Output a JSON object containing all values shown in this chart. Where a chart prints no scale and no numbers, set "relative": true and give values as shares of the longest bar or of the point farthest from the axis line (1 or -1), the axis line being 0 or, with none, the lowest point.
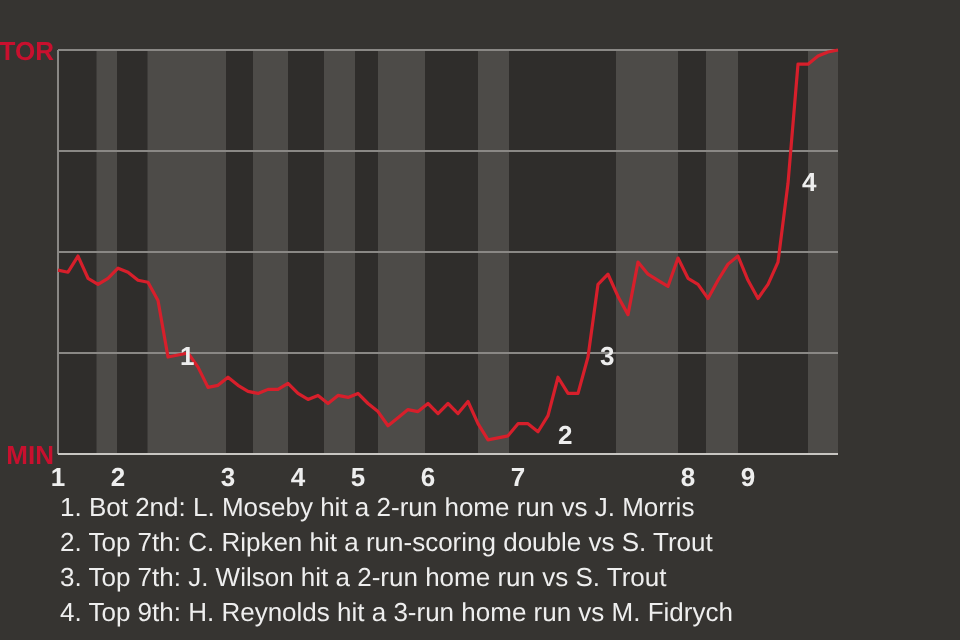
{
  "chart_data": {
    "type": "line",
    "relative": true,
    "categories": [
      "1",
      null,
      null,
      null,
      null,
      null,
      "2",
      null,
      null,
      null,
      null,
      null,
      null,
      null,
      null,
      null,
      null,
      "3",
      null,
      null,
      null,
      null,
      null,
      null,
      "4",
      null,
      null,
      null,
      null,
      null,
      "5",
      null,
      null,
      null,
      null,
      null,
      null,
      "6",
      null,
      null,
      null,
      null,
      null,
      null,
      null,
      null,
      "7",
      null,
      null,
      null,
      null,
      null,
      null,
      null,
      null,
      null,
      null,
      null,
      null,
      null,
      null,
      null,
      null,
      "8",
      null,
      null,
      null,
      null,
      null,
      "9",
      null,
      null,
      null,
      null,
      null,
      null,
      null,
      null,
      null
    ],
    "series": [
      {
        "color": "#d71f2b",
        "values": [
          0.455,
          0.45,
          0.49,
          0.435,
          0.42,
          0.435,
          0.46,
          0.45,
          0.43,
          0.425,
          0.38,
          0.24,
          0.245,
          0.25,
          0.215,
          0.165,
          0.17,
          0.19,
          0.17,
          0.155,
          0.15,
          0.16,
          0.16,
          0.175,
          0.15,
          0.135,
          0.145,
          0.125,
          0.145,
          0.14,
          0.15,
          0.125,
          0.105,
          0.07,
          0.09,
          0.11,
          0.105,
          0.125,
          0.1,
          0.125,
          0.1,
          0.13,
          0.075,
          0.035,
          0.04,
          0.045,
          0.075,
          0.075,
          0.055,
          0.095,
          0.19,
          0.15,
          0.15,
          0.24,
          0.42,
          0.445,
          0.39,
          0.345,
          0.475,
          0.445,
          0.43,
          0.415,
          0.485,
          0.435,
          0.42,
          0.385,
          0.43,
          0.47,
          0.49,
          0.43,
          0.385,
          0.42,
          0.475,
          0.67,
          0.965,
          0.965,
          0.985,
          0.995,
          1
        ]
      }
    ],
    "marker": "none",
    "line_style": "solid",
    "ref_lines": [
      {
        "axis": "y",
        "value": 0.25,
        "color": "#8a8885"
      },
      {
        "axis": "y",
        "value": 0.5,
        "color": "#8a8885"
      },
      {
        "axis": "y",
        "value": 0.75,
        "color": "#8a8885"
      },
      {
        "axis": "y",
        "value": 1,
        "color": "#8a8885"
      }
    ],
    "annotations": [
      "TOR",
      "MIN",
      "1",
      "2",
      "3",
      "4",
      "1. Bot 2nd: L. Moseby hit a 2-run home run vs J. Morris",
      "2. Top 7th: C. Ripken hit a run-scoring double vs S. Trout",
      "3. Top 7th: J. Wilson hit a 2-run home run vs S. Trout",
      "4. Top 9th: H. Reynolds hit a 3-run home run vs M. Fidrych"
    ]
  }
}
